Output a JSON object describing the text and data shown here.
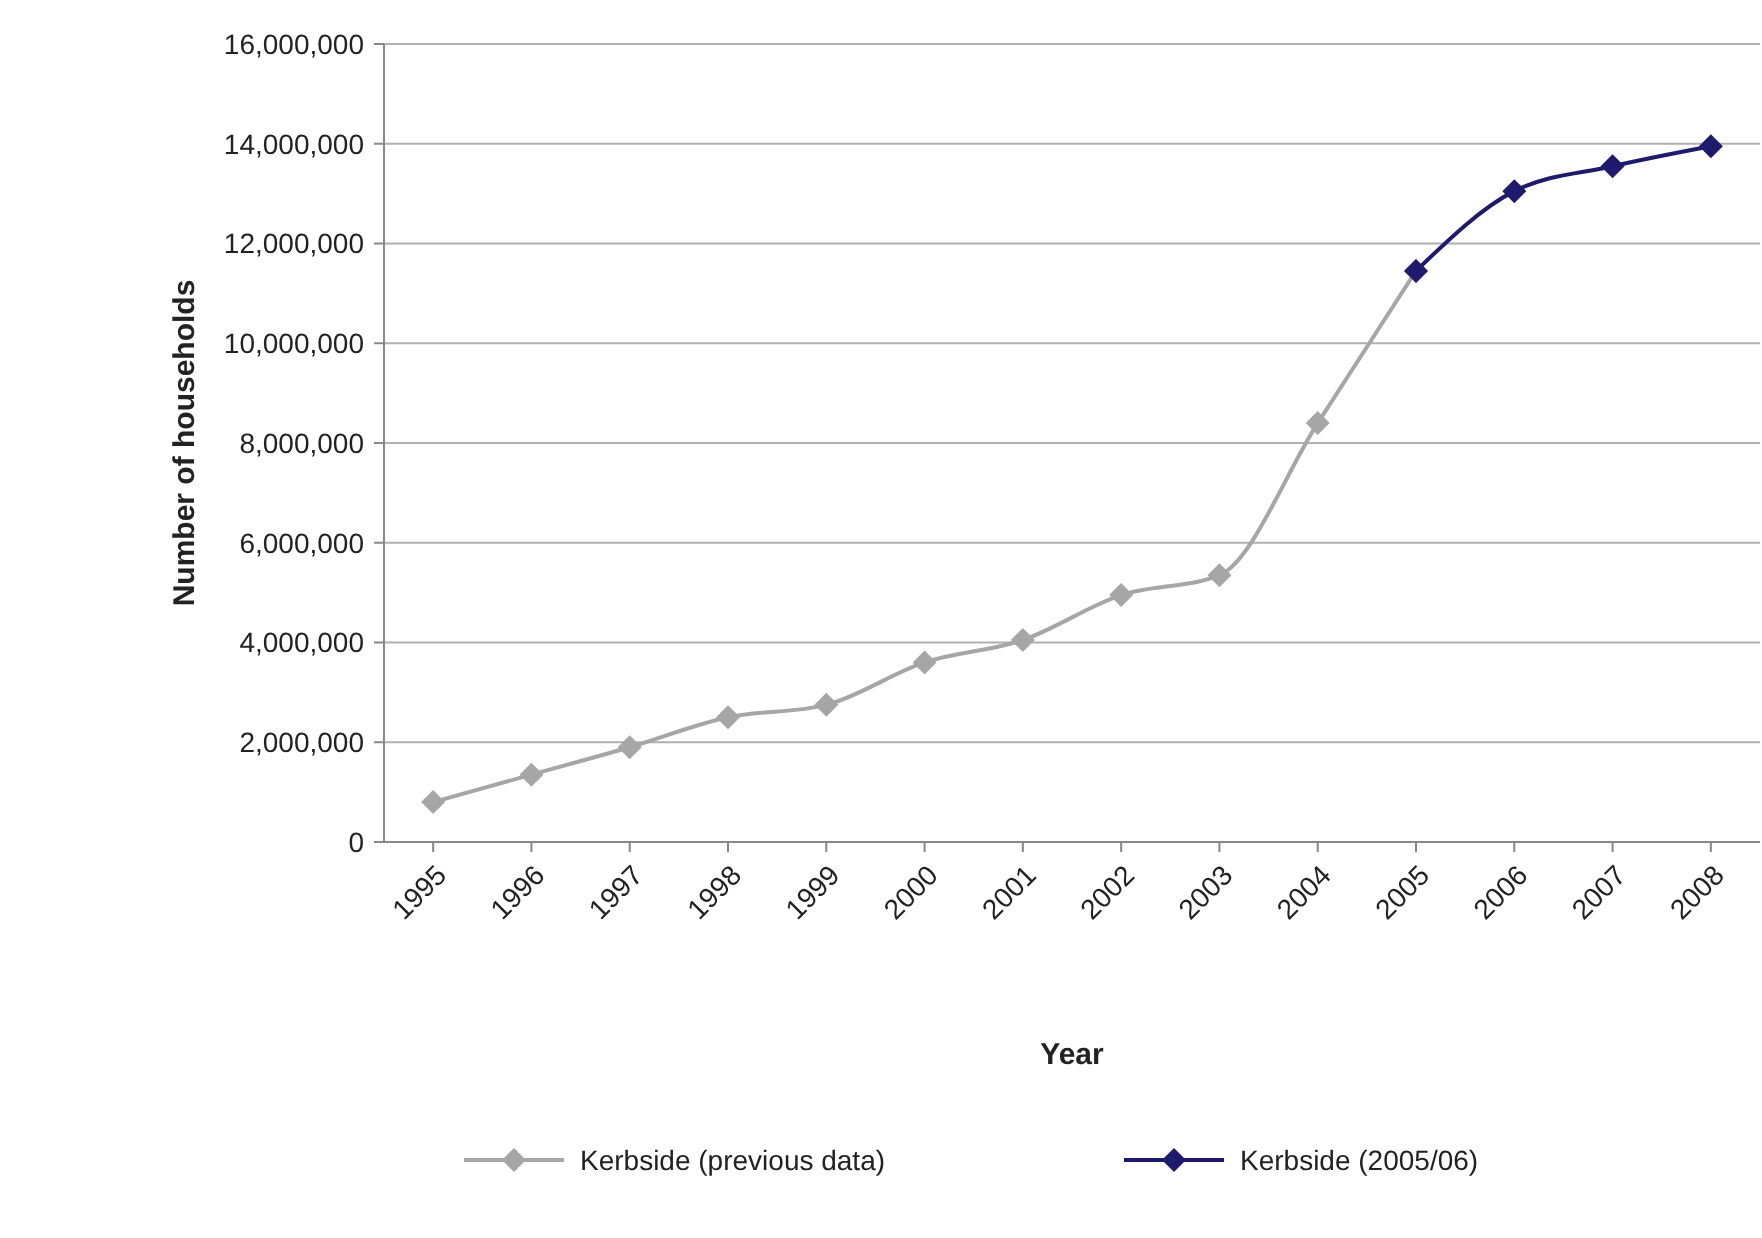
{
  "chart_data": {
    "type": "line",
    "xlabel": "Year",
    "ylabel": "Number of households",
    "categories": [
      "1995",
      "1996",
      "1997",
      "1998",
      "1999",
      "2000",
      "2001",
      "2002",
      "2003",
      "2004",
      "2005",
      "2006",
      "2007",
      "2008"
    ],
    "series": [
      {
        "name": "Kerbside (previous data)",
        "color": "#a6a6a6",
        "values": [
          800000,
          1350000,
          1900000,
          2500000,
          2750000,
          3600000,
          4050000,
          4950000,
          5350000,
          8400000,
          11450000,
          null,
          null,
          null
        ]
      },
      {
        "name": "Kerbside (2005/06)",
        "color": "#1f1a6b",
        "values": [
          null,
          null,
          null,
          null,
          null,
          null,
          null,
          null,
          null,
          null,
          11450000,
          13050000,
          13550000,
          13950000
        ]
      }
    ],
    "ylim": [
      0,
      16000000
    ],
    "yticks": [
      {
        "value": 0,
        "label": "0"
      },
      {
        "value": 2000000,
        "label": "2,000,000"
      },
      {
        "value": 4000000,
        "label": "4,000,000"
      },
      {
        "value": 6000000,
        "label": "6,000,000"
      },
      {
        "value": 8000000,
        "label": "8,000,000"
      },
      {
        "value": 10000000,
        "label": "10,000,000"
      },
      {
        "value": 12000000,
        "label": "12,000,000"
      },
      {
        "value": 14000000,
        "label": "14,000,000"
      },
      {
        "value": 16000000,
        "label": "16,000,000"
      }
    ],
    "grid": "y",
    "legend": "bottom",
    "marker": "diamond",
    "line_style": "solid"
  }
}
